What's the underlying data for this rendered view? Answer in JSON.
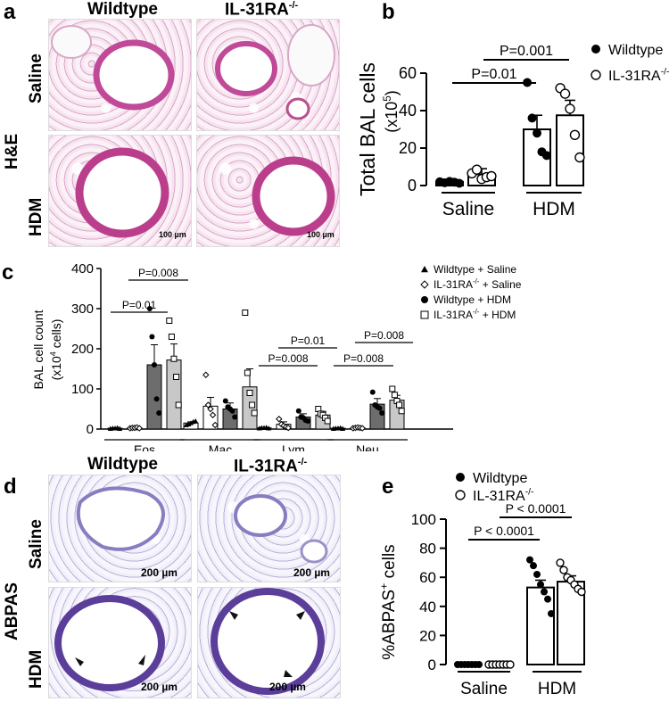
{
  "panel_labels": {
    "a": "a",
    "b": "b",
    "c": "c",
    "d": "d",
    "e": "e"
  },
  "panel_a": {
    "col_wildtype": "Wildtype",
    "col_ko": "IL-31RA",
    "col_ko_sup": "-/-",
    "row_saline": "Saline",
    "row_hdm": "HDM",
    "stain": "H&E",
    "scale_bar": "100 µm"
  },
  "panel_d": {
    "col_wildtype": "Wildtype",
    "col_ko": "IL-31RA",
    "col_ko_sup": "-/-",
    "row_saline": "Saline",
    "row_hdm": "HDM",
    "stain": "ABPAS",
    "scale_bar": "200 µm"
  },
  "chart_data": [
    {
      "panel": "b",
      "type": "bar",
      "ylabel": "Total BAL cells",
      "ylabel_unit": "(x10",
      "ylabel_unit_sup": "5",
      "ylabel_unit_close": ")",
      "ylim": [
        0,
        60
      ],
      "yticks": [
        "0",
        "20",
        "40",
        "60"
      ],
      "groups": [
        "Saline",
        "HDM"
      ],
      "series": [
        {
          "name": "Wildtype",
          "marker": "filled-circle",
          "means": [
            2,
            30
          ],
          "sem": [
            0.6,
            7.5
          ],
          "points": [
            [
              2.0,
              1.5,
              2.2,
              1.8,
              1.2
            ],
            [
              55,
              36,
              28,
              18,
              16
            ]
          ]
        },
        {
          "name": "IL-31RA",
          "name_sup": "-/-",
          "marker": "open-circle",
          "means": [
            6,
            37.5
          ],
          "sem": [
            3,
            8
          ],
          "points": [
            [
              6.5,
              8.5,
              3.5,
              4.5,
              5.0
            ],
            [
              52,
              49,
              41,
              27,
              15
            ]
          ]
        }
      ],
      "comparisons": [
        {
          "label": "P=0.01",
          "from": "Wildtype Saline",
          "to": "Wildtype HDM"
        },
        {
          "label": "P=0.001",
          "from": "IL-31RA Saline",
          "to": "IL-31RA HDM"
        }
      ],
      "legend": "top-right"
    },
    {
      "panel": "c",
      "type": "bar",
      "ylabel": "BAL cell count",
      "ylabel_unit": "(x10",
      "ylabel_unit_sup": "4",
      "ylabel_unit_close": " cells)",
      "ylim": [
        0,
        400
      ],
      "yticks": [
        "0",
        "100",
        "200",
        "300",
        "400"
      ],
      "categories": [
        "Eos",
        "Mac",
        "Lym",
        "Neu"
      ],
      "series": [
        {
          "name": "Wildtype  + Saline",
          "marker": "filled-triangle",
          "fill": "#ffffff",
          "values": [
            2,
            15,
            3,
            2
          ],
          "sem": [
            1,
            3,
            1,
            1
          ]
        },
        {
          "name": "IL-31RA",
          "name_sup": "-/-",
          "name_suffix": " + Saline",
          "marker": "open-diamond",
          "fill": "#ffffff",
          "values": [
            3,
            57,
            12,
            3
          ],
          "sem": [
            1,
            22,
            6,
            1
          ]
        },
        {
          "name": "Wildtype  + HDM",
          "marker": "filled-circle",
          "fill": "#6d6d6d",
          "values": [
            160,
            50,
            30,
            62
          ],
          "sem": [
            50,
            15,
            8,
            14
          ]
        },
        {
          "name": "IL-31RA",
          "name_sup": "-/-",
          "name_suffix": " + HDM",
          "marker": "open-square",
          "fill": "#c8c8c8",
          "values": [
            172,
            105,
            35,
            72
          ],
          "sem": [
            40,
            45,
            9,
            12
          ]
        }
      ],
      "points": {
        "Eos": [
          [
            1,
            2,
            2,
            3,
            1
          ],
          [
            2,
            3,
            3,
            4,
            2
          ],
          [
            300,
            230,
            160,
            75,
            40
          ],
          [
            270,
            230,
            175,
            130,
            60
          ]
        ],
        "Mac": [
          [
            10,
            12,
            15,
            18,
            20
          ],
          [
            135,
            60,
            50,
            35,
            10
          ],
          [
            70,
            55,
            50,
            45,
            30
          ],
          [
            290,
            140,
            90,
            60,
            40
          ]
        ],
        "Lym": [
          [
            2,
            3,
            3,
            4,
            2
          ],
          [
            25,
            12,
            8,
            5,
            3
          ],
          [
            45,
            30,
            28,
            22,
            20
          ],
          [
            50,
            38,
            35,
            28,
            20
          ]
        ],
        "Neu": [
          [
            1,
            2,
            2,
            3,
            1
          ],
          [
            2,
            3,
            4,
            3,
            2
          ],
          [
            92,
            60,
            55,
            52,
            40
          ],
          [
            100,
            85,
            70,
            60,
            45
          ]
        ]
      },
      "comparisons": [
        {
          "label": "P=0.01",
          "category": "Eos"
        },
        {
          "label": "P=0.008",
          "category": "Eos"
        },
        {
          "label": "P=0.008",
          "category": "Lym"
        },
        {
          "label": "P=0.01",
          "category": "Lym"
        },
        {
          "label": "P=0.008",
          "category": "Neu"
        },
        {
          "label": "P=0.008",
          "category": "Neu"
        }
      ],
      "legend": "top-right"
    },
    {
      "panel": "e",
      "type": "bar",
      "ylabel": "%ABPAS",
      "ylabel_sup": "+",
      "ylabel_rest": " cells",
      "ylim": [
        0,
        100
      ],
      "yticks": [
        "0",
        "20",
        "40",
        "60",
        "80",
        "100"
      ],
      "groups": [
        "Saline",
        "HDM"
      ],
      "series": [
        {
          "name": "Wildtype",
          "marker": "filled-circle",
          "means": [
            0,
            53
          ],
          "sem": [
            0,
            5
          ],
          "points": [
            [
              0,
              0,
              0,
              0,
              0,
              0,
              0
            ],
            [
              72,
              68,
              62,
              55,
              50,
              45,
              35
            ]
          ]
        },
        {
          "name": "IL-31RA",
          "name_sup": "-/-",
          "marker": "open-circle",
          "means": [
            0,
            57
          ],
          "sem": [
            0,
            4
          ],
          "points": [
            [
              0,
              0,
              0,
              0,
              0,
              0,
              0
            ],
            [
              70,
              65,
              60,
              58,
              55,
              52,
              50
            ]
          ]
        }
      ],
      "comparisons": [
        {
          "label": "P < 0.0001",
          "from": "Wildtype Saline",
          "to": "Wildtype HDM"
        },
        {
          "label": "P < 0.0001",
          "from": "IL-31RA Saline",
          "to": "IL-31RA HDM"
        }
      ],
      "legend": "top-left"
    }
  ]
}
